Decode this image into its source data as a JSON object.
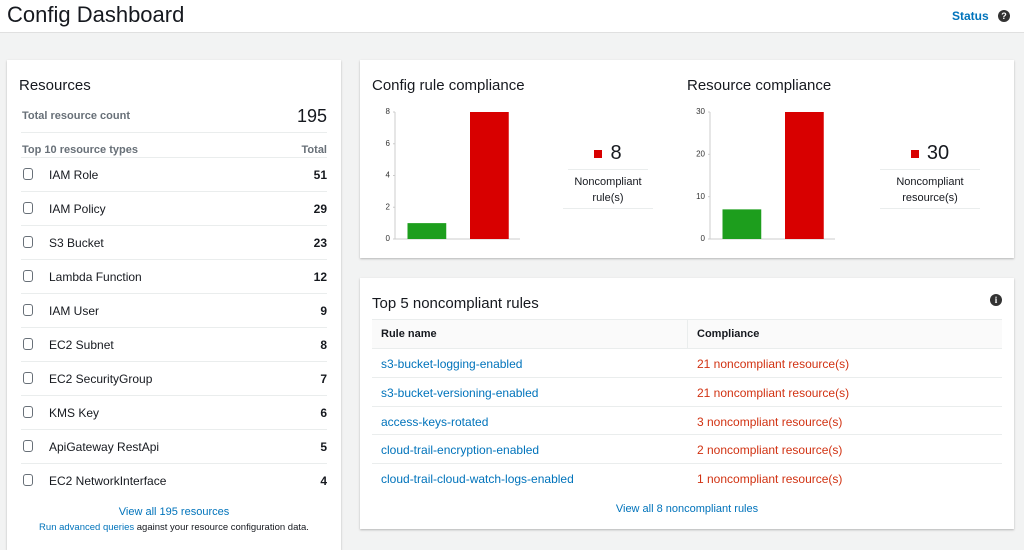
{
  "header": {
    "title": "Config Dashboard",
    "status": "Status"
  },
  "resources": {
    "title": "Resources",
    "total_label": "Total resource count",
    "total": 195,
    "list_header": "Top 10 resource types",
    "count_header": "Total",
    "rows": [
      [
        "IAM Role",
        51
      ],
      [
        "IAM Policy",
        29
      ],
      [
        "S3 Bucket",
        23
      ],
      [
        "Lambda Function",
        12
      ],
      [
        "IAM User",
        9
      ],
      [
        "EC2 Subnet",
        8
      ],
      [
        "EC2 SecurityGroup",
        7
      ],
      [
        "KMS Key",
        6
      ],
      [
        "ApiGateway RestApi",
        5
      ],
      [
        "EC2 NetworkInterface",
        4
      ]
    ],
    "view_all": "View all 195 resources",
    "query_link": "Run advanced queries",
    "query_text": "against your resource configuration data."
  },
  "chart_data": [
    {
      "type": "bar",
      "title": "Config rule compliance",
      "categories": [
        null,
        null
      ],
      "values": [
        1,
        8
      ],
      "colors": [
        "#1d9e1d",
        "#d80000"
      ],
      "ylim": [
        0,
        8
      ],
      "yticks": [
        0,
        2,
        4,
        6,
        8
      ],
      "summary": {
        "value": 8,
        "label": "Noncompliant rule(s)"
      }
    },
    {
      "type": "bar",
      "title": "Resource compliance",
      "categories": [
        null,
        null
      ],
      "values": [
        7,
        30
      ],
      "colors": [
        "#1d9e1d",
        "#d80000"
      ],
      "ylim": [
        0,
        30
      ],
      "yticks": [
        0,
        10,
        20,
        30
      ],
      "summary": {
        "value": 30,
        "label": "Noncompliant resource(s)"
      }
    }
  ],
  "rules": {
    "title": "Top 5 noncompliant rules",
    "columns": [
      "Rule name",
      "Compliance"
    ],
    "rows": [
      [
        "s3-bucket-logging-enabled",
        "21 noncompliant resource(s)"
      ],
      [
        "s3-bucket-versioning-enabled",
        "21 noncompliant resource(s)"
      ],
      [
        "access-keys-rotated",
        "3 noncompliant resource(s)"
      ],
      [
        "cloud-trail-encryption-enabled",
        "2 noncompliant resource(s)"
      ],
      [
        "cloud-trail-cloud-watch-logs-enabled",
        "1 noncompliant resource(s)"
      ]
    ],
    "view_all": "View all 8 noncompliant rules"
  }
}
